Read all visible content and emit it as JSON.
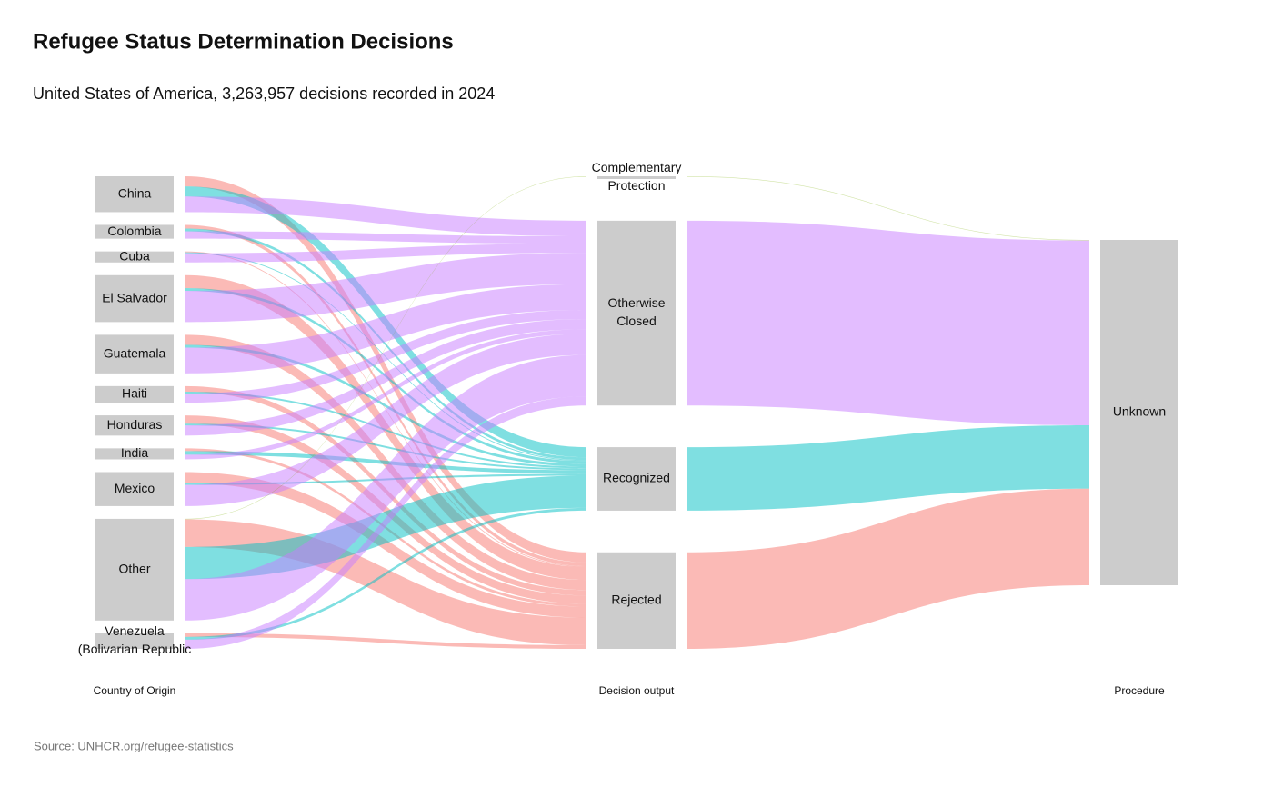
{
  "chart_data": {
    "type": "sankey",
    "title": "Refugee Status Determination Decisions",
    "subtitle": "United States of America, 3,263,957 decisions recorded in 2024",
    "source": "Source: UNHCR.org/refugee-statistics",
    "node_color": "#cccccc",
    "columns": [
      "Country of Origin",
      "Decision output",
      "Procedure"
    ],
    "nodes": [
      {
        "label": [
          "China"
        ],
        "column": 0
      },
      {
        "label": [
          "Colombia"
        ],
        "column": 0
      },
      {
        "label": [
          "Cuba"
        ],
        "column": 0
      },
      {
        "label": [
          "El Salvador"
        ],
        "column": 0
      },
      {
        "label": [
          "Guatemala"
        ],
        "column": 0
      },
      {
        "label": [
          "Haiti"
        ],
        "column": 0
      },
      {
        "label": [
          "Honduras"
        ],
        "column": 0
      },
      {
        "label": [
          "India"
        ],
        "column": 0
      },
      {
        "label": [
          "Mexico"
        ],
        "column": 0
      },
      {
        "label": [
          "Other"
        ],
        "column": 0
      },
      {
        "label": [
          "Venezuela",
          "(Bolivarian Republic"
        ],
        "column": 0
      },
      {
        "label": [
          "Complementary",
          "Protection"
        ],
        "column": 1,
        "flow_color": "rgba(124,174,0,0.35)"
      },
      {
        "label": [
          "Otherwise",
          "Closed"
        ],
        "column": 1,
        "flow_color": "rgba(199,124,255,0.5)"
      },
      {
        "label": [
          "Recognized"
        ],
        "column": 1,
        "flow_color": "rgba(0,191,196,0.5)"
      },
      {
        "label": [
          "Rejected"
        ],
        "column": 1,
        "flow_color": "rgba(248,118,109,0.5)"
      },
      {
        "label": [
          "Unknown"
        ],
        "column": 2
      }
    ],
    "links": [
      {
        "source": 0,
        "target": 14,
        "value": 95700
      },
      {
        "source": 0,
        "target": 13,
        "value": 95700
      },
      {
        "source": 0,
        "target": 12,
        "value": 147900
      },
      {
        "source": 1,
        "target": 14,
        "value": 34800
      },
      {
        "source": 1,
        "target": 13,
        "value": 26100
      },
      {
        "source": 1,
        "target": 12,
        "value": 69600
      },
      {
        "source": 2,
        "target": 14,
        "value": 8700
      },
      {
        "source": 2,
        "target": 13,
        "value": 8700
      },
      {
        "source": 2,
        "target": 12,
        "value": 87000
      },
      {
        "source": 3,
        "target": 14,
        "value": 121800
      },
      {
        "source": 3,
        "target": 13,
        "value": 26100
      },
      {
        "source": 3,
        "target": 12,
        "value": 295800
      },
      {
        "source": 4,
        "target": 14,
        "value": 95700
      },
      {
        "source": 4,
        "target": 13,
        "value": 26100
      },
      {
        "source": 4,
        "target": 12,
        "value": 243600
      },
      {
        "source": 5,
        "target": 14,
        "value": 52200
      },
      {
        "source": 5,
        "target": 13,
        "value": 17400
      },
      {
        "source": 5,
        "target": 12,
        "value": 87000
      },
      {
        "source": 6,
        "target": 14,
        "value": 78300
      },
      {
        "source": 6,
        "target": 13,
        "value": 17400
      },
      {
        "source": 6,
        "target": 12,
        "value": 95700
      },
      {
        "source": 7,
        "target": 14,
        "value": 26100
      },
      {
        "source": 7,
        "target": 13,
        "value": 34800
      },
      {
        "source": 7,
        "target": 12,
        "value": 43500
      },
      {
        "source": 8,
        "target": 14,
        "value": 104400
      },
      {
        "source": 8,
        "target": 13,
        "value": 17400
      },
      {
        "source": 8,
        "target": 12,
        "value": 200100
      },
      {
        "source": 9,
        "target": 11,
        "value": 5000
      },
      {
        "source": 9,
        "target": 14,
        "value": 261000
      },
      {
        "source": 9,
        "target": 13,
        "value": 304500
      },
      {
        "source": 9,
        "target": 12,
        "value": 391500
      },
      {
        "source": 10,
        "target": 14,
        "value": 34800
      },
      {
        "source": 10,
        "target": 13,
        "value": 26100
      },
      {
        "source": 10,
        "target": 12,
        "value": 87000
      },
      {
        "source": 11,
        "target": 15,
        "value": 5000
      },
      {
        "source": 12,
        "target": 15,
        "value": 1748700
      },
      {
        "source": 13,
        "target": 15,
        "value": 600300
      },
      {
        "source": 14,
        "target": 15,
        "value": 913500
      }
    ]
  }
}
